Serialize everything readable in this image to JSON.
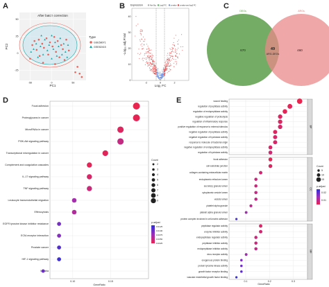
{
  "panels": {
    "A": {
      "letter": "A",
      "title": "After batch correction",
      "xlabel": "PC1",
      "ylabel": "PC2",
      "legend_title": "Type",
      "legend_items": [
        {
          "name": "GSE58071",
          "color": "#e8635a",
          "shape": "circle"
        },
        {
          "name": "GSE82415",
          "color": "#1aa5a5",
          "shape": "triangle"
        }
      ],
      "x_ticks": [
        "-50",
        "0",
        "50"
      ],
      "y_ticks": [
        "50",
        "25",
        "0",
        "-25"
      ],
      "chart_data": {
        "type": "scatter",
        "title": "After batch correction",
        "xlabel": "PC1",
        "ylabel": "PC2",
        "xlim": [
          -75,
          80
        ],
        "ylim": [
          -40,
          60
        ],
        "series": [
          {
            "name": "GSE58071",
            "points": [
              [
                -45,
                12
              ],
              [
                -40,
                18
              ],
              [
                -35,
                5
              ],
              [
                -30,
                20
              ],
              [
                -28,
                -4
              ],
              [
                -22,
                14
              ],
              [
                -18,
                8
              ],
              [
                -12,
                22
              ],
              [
                -8,
                -2
              ],
              [
                -4,
                16
              ],
              [
                2,
                10
              ],
              [
                6,
                24
              ],
              [
                10,
                2
              ],
              [
                14,
                18
              ],
              [
                18,
                -6
              ],
              [
                22,
                12
              ],
              [
                26,
                6
              ],
              [
                30,
                -10
              ],
              [
                34,
                20
              ],
              [
                40,
                4
              ],
              [
                -50,
                -8
              ],
              [
                -20,
                -14
              ],
              [
                8,
                -16
              ],
              [
                60,
                -20
              ],
              [
                55,
                -28
              ],
              [
                65,
                -30
              ],
              [
                70,
                -35
              ]
            ]
          },
          {
            "name": "GSE82415",
            "points": [
              [
                -42,
                6
              ],
              [
                -36,
                14
              ],
              [
                -32,
                -6
              ],
              [
                -26,
                10
              ],
              [
                -20,
                -2
              ],
              [
                -16,
                20
              ],
              [
                -10,
                4
              ],
              [
                -6,
                12
              ],
              [
                0,
                -8
              ],
              [
                4,
                6
              ],
              [
                8,
                16
              ],
              [
                12,
                -4
              ],
              [
                16,
                10
              ],
              [
                20,
                22
              ],
              [
                24,
                -2
              ],
              [
                28,
                14
              ],
              [
                32,
                2
              ],
              [
                36,
                -6
              ],
              [
                -48,
                2
              ],
              [
                -24,
                26
              ],
              [
                0,
                26
              ],
              [
                38,
                12
              ]
            ]
          }
        ]
      }
    },
    "B": {
      "letter": "B",
      "legend_title": "Expression",
      "legend_items": [
        {
          "name": "Not Sig",
          "color": "#a8a8a8"
        },
        {
          "name": "Log2 FC",
          "color": "#4caf50"
        },
        {
          "name": "p-value",
          "color": "#6f8fd8"
        },
        {
          "name": "p-value and log2 FC",
          "color": "#e04040"
        }
      ],
      "xlabel": "Log₂ FC",
      "ylabel": "-Log₁₀ adj.P.Val",
      "x_ticks": [
        "-2",
        "0",
        "2"
      ],
      "y_ticks": [
        "40",
        "30",
        "20",
        "10",
        "0"
      ],
      "chart_data": {
        "type": "scatter",
        "xlabel": "Log2 FC",
        "ylabel": "-Log10 adj.P.Val",
        "xlim": [
          -4,
          4
        ],
        "ylim": [
          0,
          45
        ],
        "cutoffs": {
          "log2fc": [
            -0.5,
            0.5
          ]
        }
      }
    },
    "C": {
      "letter": "C",
      "left_label": "DEGs",
      "right_label": "ARGs",
      "left_count": "670",
      "right_count": "460",
      "overlap_count": "49",
      "overlap_label": "ARG-DEGs",
      "left_color": "#5c9e4a",
      "right_color": "#e98a8a"
    },
    "D": {
      "letter": "D",
      "xlabel": "GeneRatio",
      "x_ticks": [
        "0.10",
        "0.15"
      ],
      "legend_count_title": "Count",
      "legend_counts": [
        "2",
        "3",
        "4",
        "5",
        "6",
        "7",
        "8",
        "9"
      ],
      "legend_padj_title": "p.adjust",
      "legend_padj_ticks": [
        "0.0125",
        "0.0100",
        "0.0075",
        "0.0050",
        "0.0025"
      ],
      "chart_data": {
        "type": "scatter",
        "xlabel": "GeneRatio",
        "xlim": [
          0.07,
          0.2
        ],
        "terms": [
          "Focal adhesion",
          "Proteoglycans in cancer",
          "MicroRNAs in cancer",
          "PI3K-Akt signaling pathway",
          "Transcriptional misregulation in cancer",
          "Complement and coagulation cascades",
          "IL-17 signaling pathway",
          "TNF signaling pathway",
          "Leukocyte transendothelial migration",
          "Efferocytosis",
          "EGFR tyrosine kinase inhibitor resistance",
          "ECM-receptor interaction",
          "Prostate cancer",
          "HIF-1 signaling pathway",
          "Malaria"
        ],
        "gene_ratio": [
          0.184,
          0.184,
          0.163,
          0.163,
          0.143,
          0.122,
          0.122,
          0.122,
          0.102,
          0.102,
          0.082,
          0.082,
          0.082,
          0.082,
          0.061
        ],
        "count": [
          9,
          9,
          8,
          8,
          7,
          6,
          6,
          6,
          5,
          5,
          4,
          4,
          4,
          4,
          3
        ],
        "p_adjust": [
          0.0005,
          0.0008,
          0.0015,
          0.0035,
          0.0012,
          0.001,
          0.002,
          0.003,
          0.006,
          0.005,
          0.009,
          0.008,
          0.011,
          0.012,
          0.0095
        ]
      }
    },
    "E": {
      "letter": "E",
      "xlabel": "GeneRatio",
      "x_ticks": [
        "0.1",
        "0.2",
        "0.3"
      ],
      "facets": [
        "BP",
        "CC",
        "MF"
      ],
      "legend_count_title": "Count",
      "legend_counts": [
        "5",
        "10",
        "15"
      ],
      "legend_padj_title": "p.adjust",
      "legend_padj_ticks": [
        "0.02",
        "0.01"
      ],
      "chart_data": {
        "type": "scatter",
        "xlabel": "GeneRatio",
        "xlim": [
          0.03,
          0.36
        ],
        "groups": [
          {
            "name": "BP",
            "terms": [
              "wound healing",
              "regulation of peptidase activity",
              "regulation of endopeptidase activity",
              "negative regulation of proteolysis",
              "regulation of inflammatory response",
              "positive regulation of response to external stimulus",
              "negative regulation of peptidase activity",
              "negative regulation of hydrolase activity",
              "response to molecule of bacterial origin",
              "negative regulation of endopeptidase activity",
              "regulation of hydrolase activity"
            ],
            "gene_ratio": [
              0.327,
              0.286,
              0.265,
              0.245,
              0.245,
              0.245,
              0.224,
              0.224,
              0.224,
              0.204,
              0.204
            ],
            "count": [
              16,
              14,
              13,
              12,
              12,
              12,
              11,
              11,
              11,
              10,
              10
            ],
            "p_adjust": [
              0.001,
              0.002,
              0.002,
              0.003,
              0.003,
              0.004,
              0.003,
              0.004,
              0.004,
              0.004,
              0.005
            ]
          },
          {
            "name": "CC",
            "terms": [
              "focal adhesion",
              "cell-substrate junction",
              "collagen-containing extracellular matrix",
              "endoplasmic reticulum lumen",
              "secretory granule lumen",
              "cytoplasmic vesicle lumen",
              "vesicle lumen",
              "platelet alpha granule",
              "platelet alpha granule lumen",
              "protein complex involved in cell-matrix adhesion"
            ],
            "gene_ratio": [
              0.204,
              0.204,
              0.163,
              0.143,
              0.143,
              0.143,
              0.143,
              0.122,
              0.102,
              0.061
            ],
            "count": [
              10,
              10,
              8,
              7,
              7,
              7,
              7,
              6,
              5,
              3
            ],
            "p_adjust": [
              0.002,
              0.003,
              0.005,
              0.006,
              0.006,
              0.007,
              0.007,
              0.008,
              0.012,
              0.022
            ]
          },
          {
            "name": "MF",
            "terms": [
              "peptidase regulator activity",
              "enzyme inhibitor activity",
              "endopeptidase regulator activity",
              "peptidase inhibitor activity",
              "endopeptidase inhibitor activity",
              "virus receptor activity",
              "exogenous protein binding",
              "protein tyrosine kinase activity",
              "growth factor receptor binding",
              "vascular endothelial growth factor binding"
            ],
            "gene_ratio": [
              0.163,
              0.163,
              0.143,
              0.143,
              0.143,
              0.102,
              0.082,
              0.082,
              0.082,
              0.061
            ],
            "count": [
              8,
              8,
              7,
              7,
              7,
              5,
              4,
              4,
              4,
              3
            ],
            "p_adjust": [
              0.004,
              0.005,
              0.006,
              0.006,
              0.007,
              0.012,
              0.016,
              0.018,
              0.02,
              0.024
            ]
          }
        ]
      }
    }
  }
}
